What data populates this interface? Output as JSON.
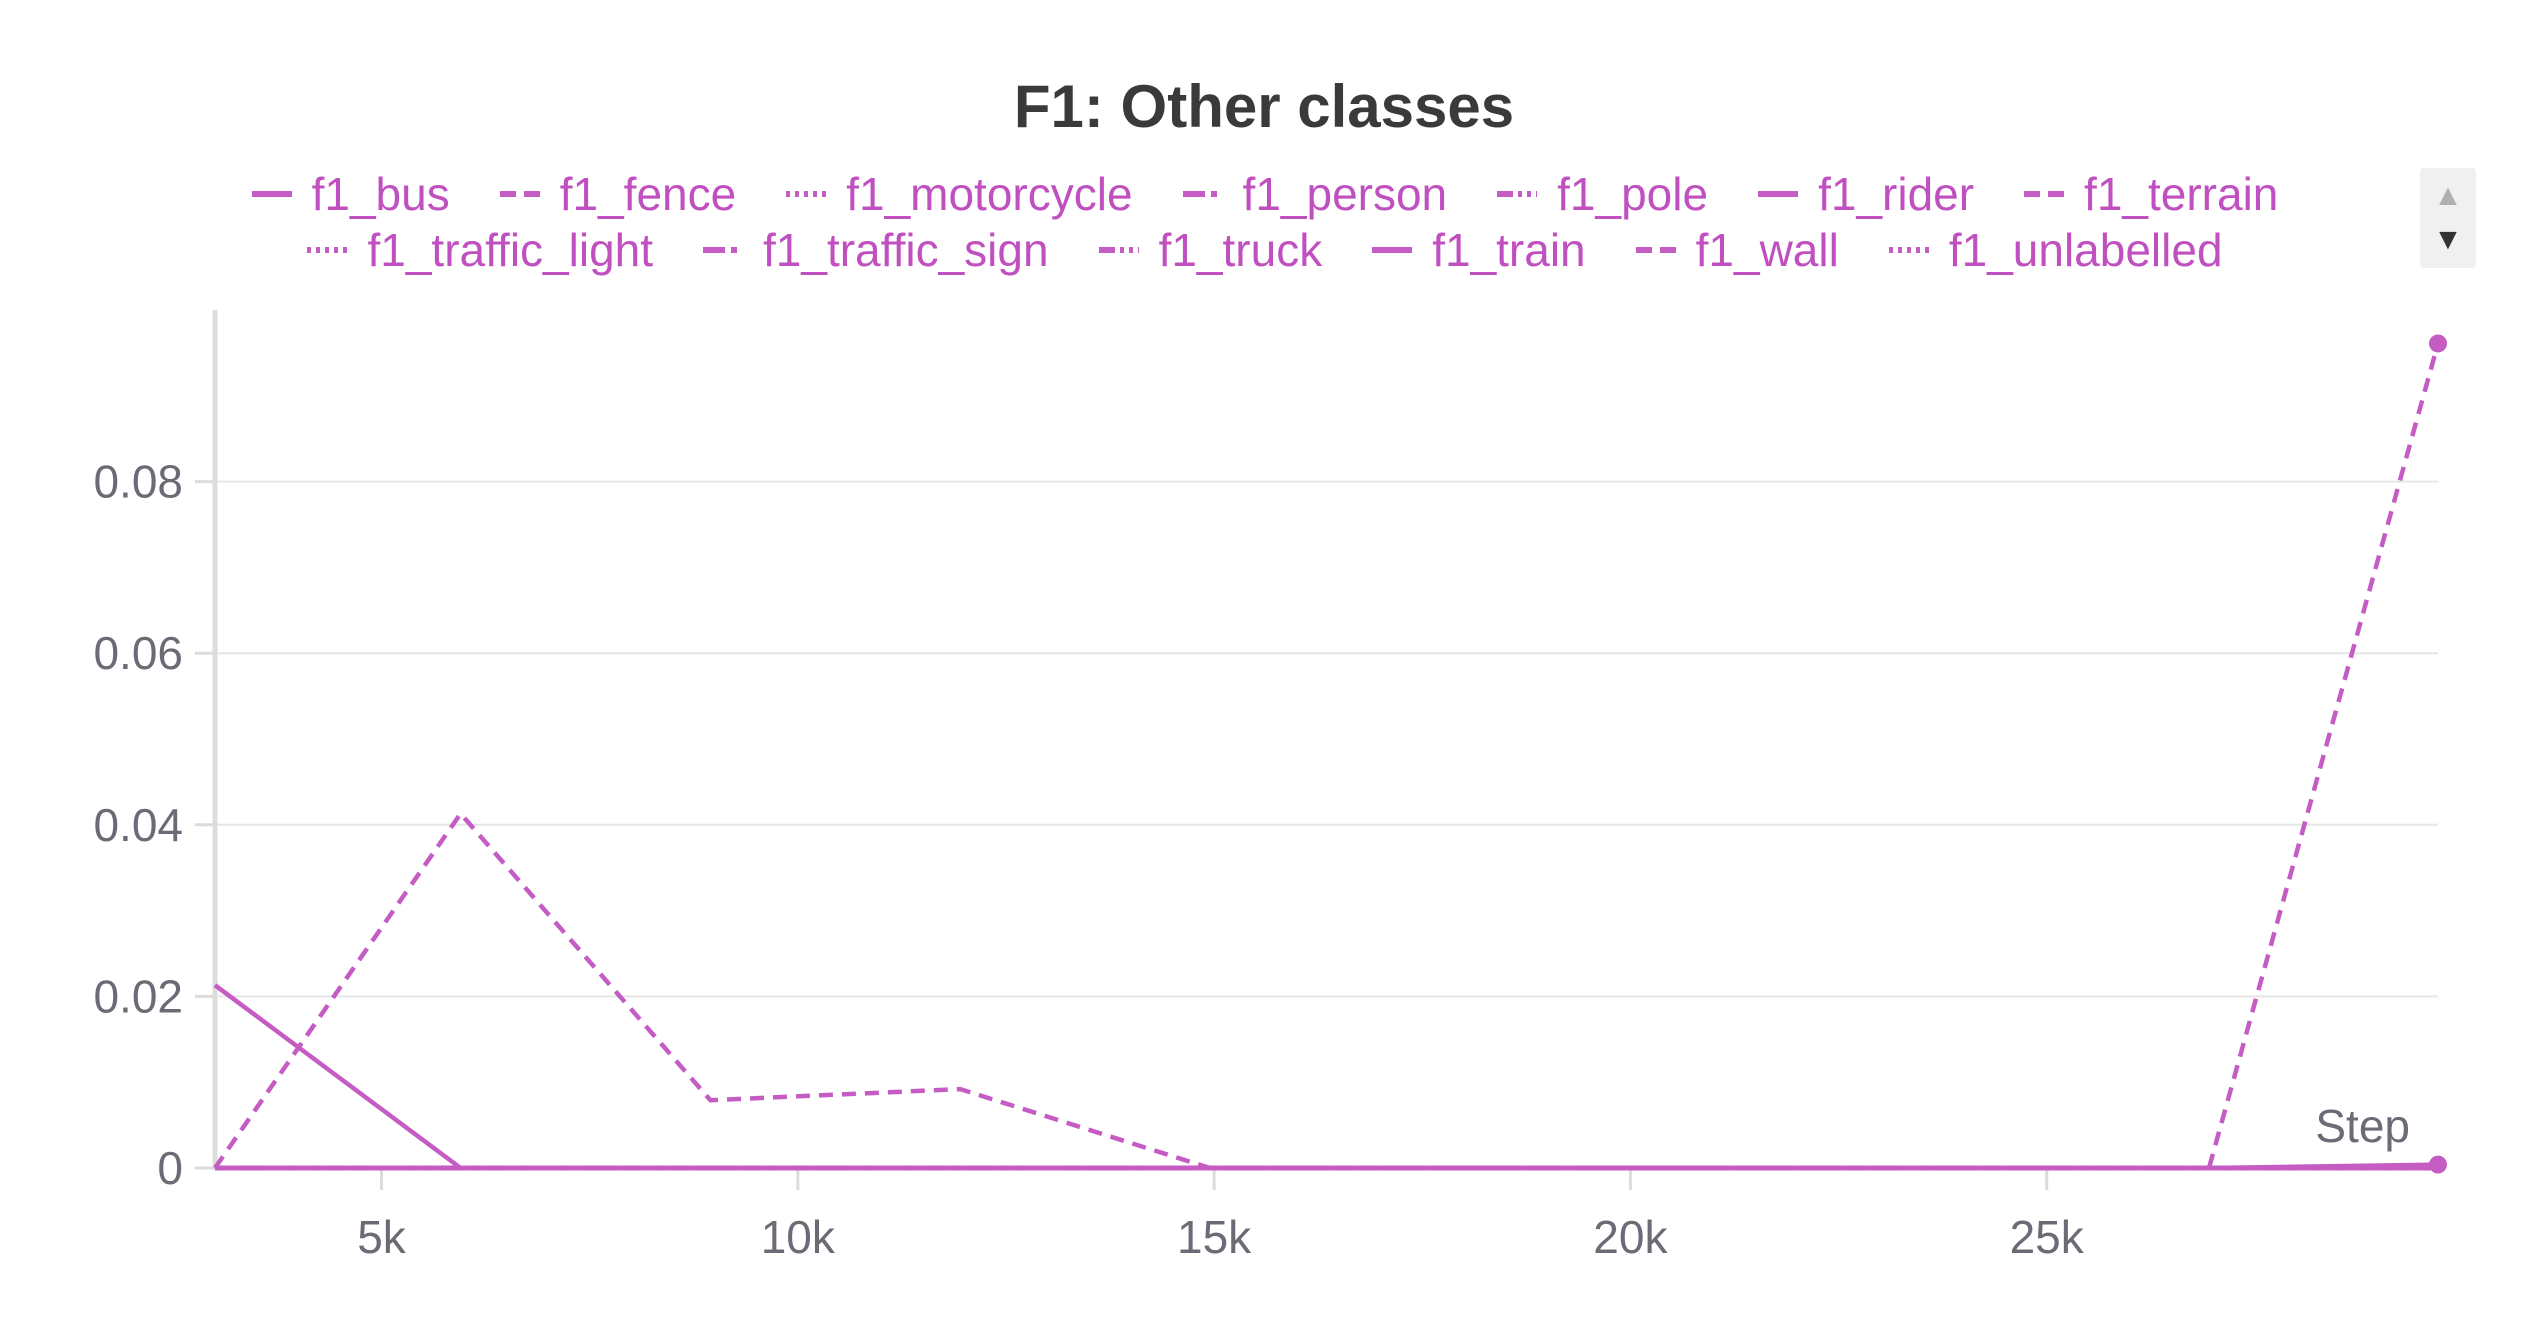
{
  "colors": {
    "series": "#c45cc4",
    "legend_text": "#c050c0",
    "grid": "#e6e6e6",
    "axis": "#dcdcdc",
    "tick_text": "#6b6b76",
    "title_text": "#3a3a3a"
  },
  "legend": {
    "scroll_up_icon": "▲",
    "scroll_down_icon": "▼"
  },
  "chart_data": {
    "type": "line",
    "title": "F1: Other classes",
    "xlabel": "Step",
    "ylabel": "",
    "xlim": [
      3000,
      29700
    ],
    "ylim": [
      0,
      0.1
    ],
    "x_ticks": [
      5000,
      10000,
      15000,
      20000,
      25000
    ],
    "x_tick_labels": [
      "5k",
      "10k",
      "15k",
      "20k",
      "25k"
    ],
    "y_ticks": [
      0,
      0.02,
      0.04,
      0.06,
      0.08
    ],
    "y_tick_labels": [
      "0",
      "0.02",
      "0.04",
      "0.06",
      "0.08"
    ],
    "grid": true,
    "legend_position": "top",
    "series": [
      {
        "name": "f1_bus",
        "dash": "solid",
        "x": [
          3000,
          5950,
          8950,
          11950,
          14950,
          17950,
          20950,
          23950,
          26950,
          29700
        ],
        "y": [
          0.0213,
          0,
          0,
          0,
          0,
          0,
          0,
          0,
          0,
          0.0004
        ]
      },
      {
        "name": "f1_fence",
        "dash": "dashed",
        "x": [
          3000,
          5950,
          8950,
          11950,
          14950,
          17950,
          20950,
          23950,
          26950,
          29700
        ],
        "y": [
          0,
          0.0413,
          0.0079,
          0.0092,
          0,
          0,
          0,
          0,
          0,
          0.0961
        ]
      },
      {
        "name": "f1_motorcycle",
        "dash": "dotted",
        "x": [
          3000,
          29700
        ],
        "y": [
          0,
          0
        ]
      },
      {
        "name": "f1_person",
        "dash": "dashdot",
        "x": [
          3000,
          29700
        ],
        "y": [
          0,
          0
        ]
      },
      {
        "name": "f1_pole",
        "dash": "dashdotdot",
        "x": [
          3000,
          29700
        ],
        "y": [
          0,
          0
        ]
      },
      {
        "name": "f1_rider",
        "dash": "solid",
        "x": [
          3000,
          29700
        ],
        "y": [
          0,
          0
        ]
      },
      {
        "name": "f1_terrain",
        "dash": "dashed",
        "x": [
          3000,
          29700
        ],
        "y": [
          0,
          0
        ]
      },
      {
        "name": "f1_traffic_light",
        "dash": "dotted",
        "x": [
          3000,
          29700
        ],
        "y": [
          0,
          0
        ]
      },
      {
        "name": "f1_traffic_sign",
        "dash": "dashdot",
        "x": [
          3000,
          29700
        ],
        "y": [
          0,
          0
        ]
      },
      {
        "name": "f1_truck",
        "dash": "dashdotdot",
        "x": [
          3000,
          29700
        ],
        "y": [
          0,
          0
        ]
      },
      {
        "name": "f1_train",
        "dash": "solid",
        "x": [
          3000,
          29700
        ],
        "y": [
          0,
          0
        ]
      },
      {
        "name": "f1_wall",
        "dash": "dashed",
        "x": [
          3000,
          29700
        ],
        "y": [
          0,
          0
        ]
      },
      {
        "name": "f1_unlabelled",
        "dash": "dotted",
        "x": [
          3000,
          29700
        ],
        "y": [
          0,
          0
        ]
      }
    ],
    "end_markers": [
      {
        "x": 29700,
        "y": 0.0961
      },
      {
        "x": 29700,
        "y": 0.0004
      }
    ]
  }
}
